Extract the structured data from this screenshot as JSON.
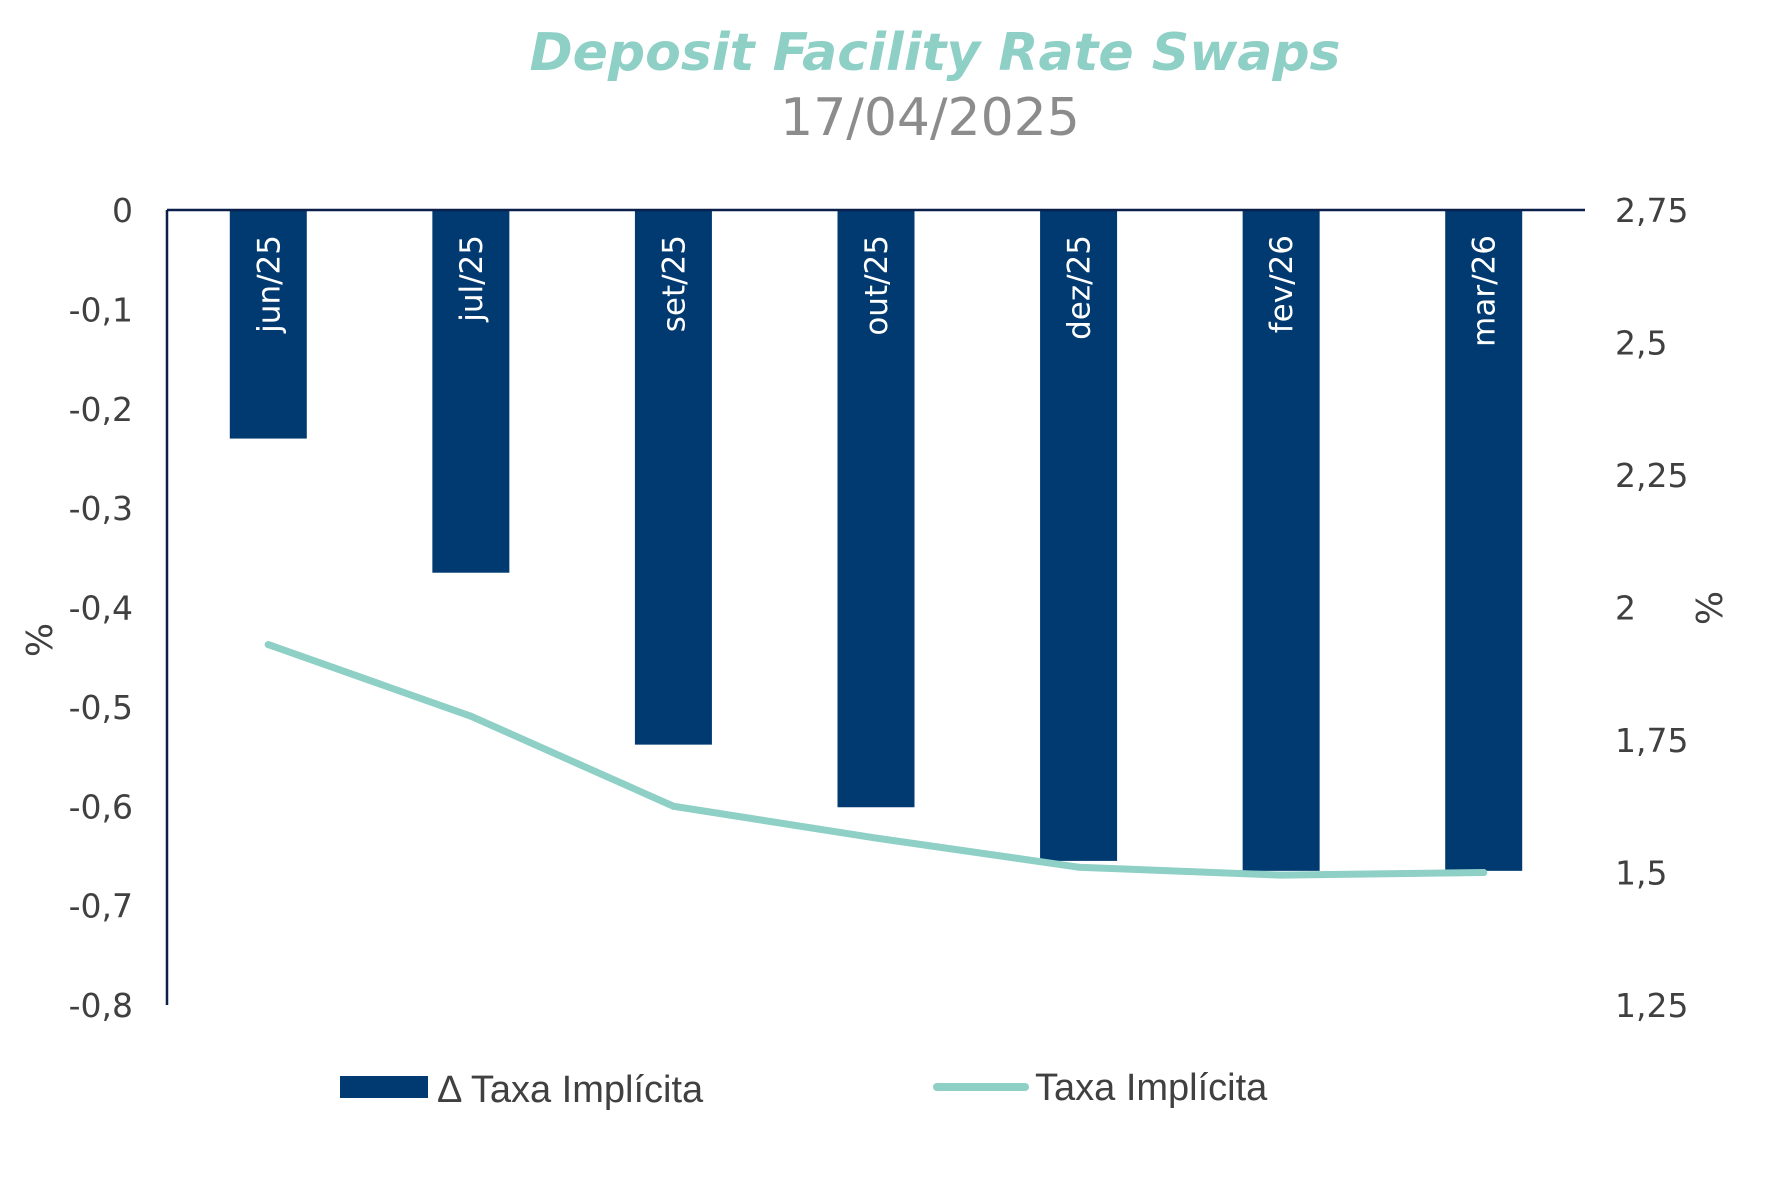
{
  "colors": {
    "title": "#8ecfc6",
    "subtitle": "#8c8c8c",
    "bar": "#003a70",
    "line": "#8ecfc6",
    "axis": "#0b1f4b",
    "text": "#404040"
  },
  "chart_data": {
    "type": "bar",
    "title": "Deposit Facility Rate Swaps",
    "subtitle": "17/04/2025",
    "categories": [
      "jun/25",
      "jul/25",
      "set/25",
      "out/25",
      "dez/25",
      "fev/26",
      "mar/26"
    ],
    "series": [
      {
        "name": "Δ Taxa Implícita",
        "type": "bar",
        "axis": "left",
        "values": [
          -0.23,
          -0.365,
          -0.538,
          -0.601,
          -0.655,
          -0.665,
          -0.665
        ]
      },
      {
        "name": "Taxa Implícita",
        "type": "line",
        "axis": "right",
        "values": [
          1.93,
          1.795,
          1.625,
          1.565,
          1.51,
          1.495,
          1.5
        ]
      }
    ],
    "ylabel": "%",
    "y2label": "%",
    "ylim": [
      -0.8,
      0
    ],
    "y2lim": [
      1.25,
      2.75
    ],
    "yticks": [
      "0",
      "-0,1",
      "-0,2",
      "-0,3",
      "-0,4",
      "-0,5",
      "-0,6",
      "-0,7",
      "-0,8"
    ],
    "y2ticks": [
      "2,75",
      "2,5",
      "2,25",
      "2",
      "1,75",
      "1,5",
      "1,25"
    ],
    "grid": false,
    "legend": "bottom"
  }
}
